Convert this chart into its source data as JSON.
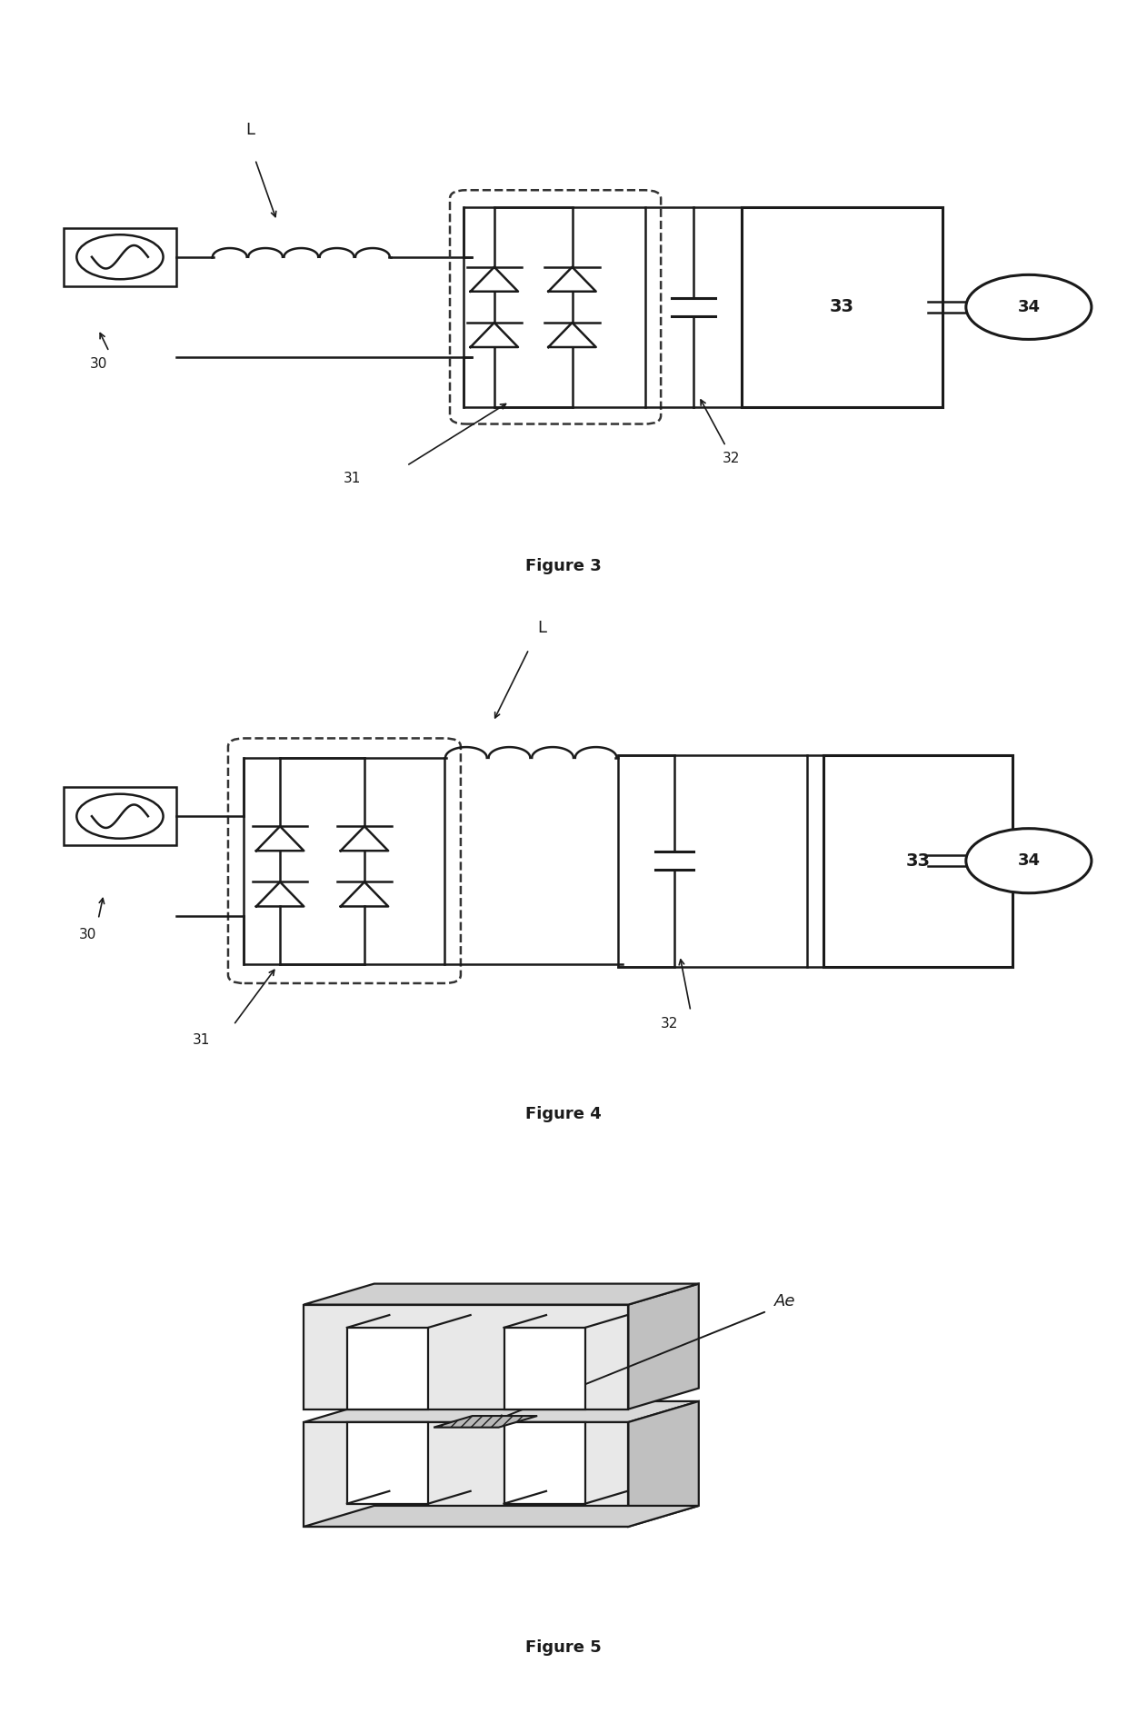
{
  "fig3_title": "Figure 3",
  "fig4_title": "Figure 4",
  "fig5_title": "Figure 5",
  "bg_color": "#ffffff",
  "lc": "#1a1a1a",
  "lc_dash": "#333333",
  "gray_light": "#e8e8e8",
  "gray_med": "#c8c8c8",
  "gray_dark": "#a0a0a0"
}
